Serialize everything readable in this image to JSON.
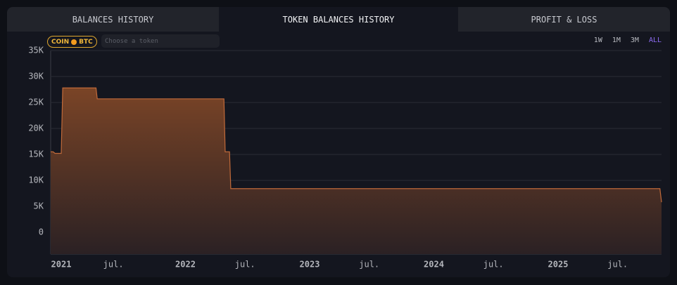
{
  "tabs": [
    "BALANCES HISTORY",
    "TOKEN BALANCES HISTORY",
    "PROFIT & LOSS"
  ],
  "active_tab": 1,
  "coin_badge": {
    "label": "COIN",
    "token": "BTC"
  },
  "token_input": {
    "placeholder": "Choose a token"
  },
  "ranges": [
    "1W",
    "1M",
    "3M",
    "ALL"
  ],
  "active_range": 3,
  "chart_data": {
    "type": "area",
    "x": [
      2020.915,
      2020.935,
      2020.95,
      2021.0,
      2021.012,
      2021.28,
      2021.29,
      2022.31,
      2022.32,
      2022.355,
      2022.365,
      2025.82,
      2025.833
    ],
    "values": [
      15500,
      15500,
      15200,
      15200,
      27800,
      27800,
      25700,
      25700,
      15500,
      15500,
      8400,
      8400,
      5800
    ],
    "color": "#c06a3a",
    "xlim": [
      2020.915,
      2025.833
    ],
    "xticks": [
      {
        "value": 2021,
        "label": "2021"
      },
      {
        "value": 2021.42,
        "label": "jul."
      },
      {
        "value": 2022,
        "label": "2022"
      },
      {
        "value": 2022.48,
        "label": "jul."
      },
      {
        "value": 2023,
        "label": "2023"
      },
      {
        "value": 2023.48,
        "label": "jul."
      },
      {
        "value": 2024,
        "label": "2024"
      },
      {
        "value": 2024.48,
        "label": "jul."
      },
      {
        "value": 2025,
        "label": "2025"
      },
      {
        "value": 2025.48,
        "label": "jul."
      }
    ],
    "ylim": [
      -4200,
      35000
    ],
    "yticks": [
      0,
      {
        "value": 5000,
        "label": "5K"
      },
      {
        "value": 10000,
        "label": "10K"
      },
      {
        "value": 15000,
        "label": "15K"
      },
      {
        "value": 20000,
        "label": "20K"
      },
      {
        "value": 25000,
        "label": "25K"
      },
      {
        "value": 30000,
        "label": "30K"
      },
      {
        "value": 35000,
        "label": "35K"
      }
    ],
    "grid": true
  }
}
